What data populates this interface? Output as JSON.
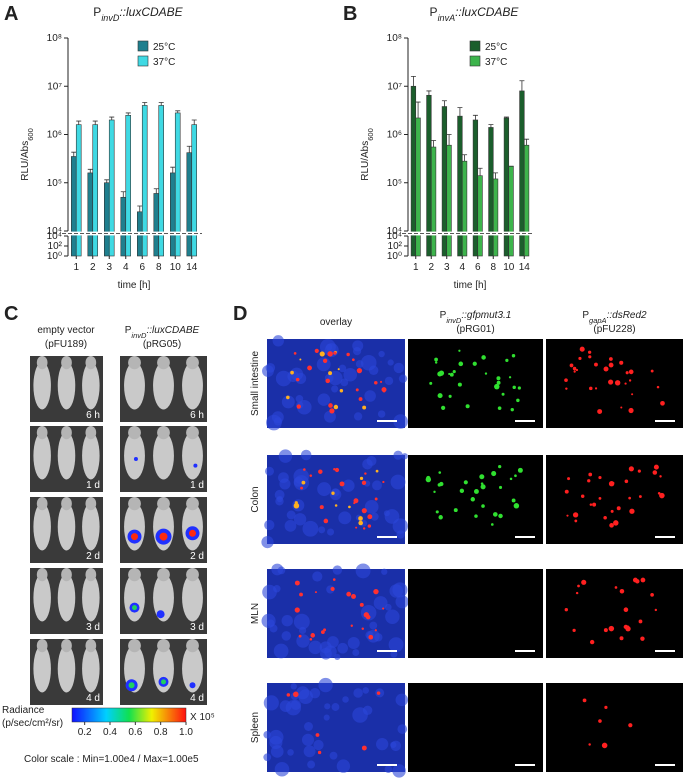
{
  "panel_labels": [
    "A",
    "B",
    "C",
    "D"
  ],
  "chart_data": [
    {
      "type": "bar",
      "title_prefix": "P",
      "title_subscript": "invD",
      "title_suffix": "::luxCDABE",
      "ylabel": "RLU/Abs",
      "ylabel_subscript": "600",
      "xlabel": "time [h]",
      "categories": [
        "1",
        "2",
        "3",
        "4",
        "6",
        "8",
        "10",
        "14"
      ],
      "series": [
        {
          "name": "25°C",
          "color": "#1f7f8e",
          "values": [
            350000,
            160000,
            100000,
            50000,
            25000,
            60000,
            160000,
            420000
          ],
          "errors": [
            80000,
            30000,
            15000,
            15000,
            8000,
            15000,
            50000,
            150000
          ]
        },
        {
          "name": "37°C",
          "color": "#3fd9e3",
          "values": [
            1600000,
            1600000,
            2000000,
            2500000,
            4000000,
            4000000,
            2800000,
            1600000
          ],
          "errors": [
            300000,
            300000,
            300000,
            300000,
            600000,
            600000,
            300000,
            400000
          ]
        }
      ],
      "log_scale": true,
      "ylim": [
        10000,
        100000000
      ],
      "yticks": [
        {
          "value": 10000,
          "label": "10⁴"
        },
        {
          "value": 100000,
          "label": "10⁵"
        },
        {
          "value": 1000000,
          "label": "10⁶"
        },
        {
          "value": 10000000,
          "label": "10⁷"
        },
        {
          "value": 100000000,
          "label": "10⁸"
        }
      ],
      "ylim_lower": [
        1,
        10000
      ],
      "yticks_lower": [
        {
          "value": 1,
          "label": "10⁰"
        },
        {
          "value": 100,
          "label": "10²"
        },
        {
          "value": 10000,
          "label": "10⁴"
        }
      ],
      "legend": "upper right"
    },
    {
      "type": "bar",
      "title_prefix": "P",
      "title_subscript": "invA",
      "title_suffix": "::luxCDABE",
      "ylabel": "RLU/Abs",
      "ylabel_subscript": "600",
      "xlabel": "time [h]",
      "categories": [
        "1",
        "2",
        "3",
        "4",
        "6",
        "8",
        "10",
        "14"
      ],
      "series": [
        {
          "name": "25°C",
          "color": "#1b5e2c",
          "values": [
            10000000,
            6500000,
            3800000,
            2400000,
            2000000,
            1400000,
            2200000,
            8000000
          ],
          "errors": [
            6000000,
            1500000,
            1200000,
            1200000,
            500000,
            200000,
            100000,
            5000000
          ]
        },
        {
          "name": "37°C",
          "color": "#3db44c",
          "values": [
            2200000,
            550000,
            600000,
            280000,
            140000,
            120000,
            220000,
            600000
          ],
          "errors": [
            2500000,
            200000,
            400000,
            100000,
            60000,
            40000,
            0,
            200000
          ]
        }
      ],
      "log_scale": true,
      "ylim": [
        10000,
        100000000
      ],
      "yticks": [
        {
          "value": 10000,
          "label": "10⁴"
        },
        {
          "value": 100000,
          "label": "10⁵"
        },
        {
          "value": 1000000,
          "label": "10⁶"
        },
        {
          "value": 10000000,
          "label": "10⁷"
        },
        {
          "value": 100000000,
          "label": "10⁸"
        }
      ],
      "ylim_lower": [
        1,
        10000
      ],
      "yticks_lower": [
        {
          "value": 1,
          "label": "10⁰"
        },
        {
          "value": 100,
          "label": "10²"
        },
        {
          "value": 10000,
          "label": "10⁴"
        }
      ],
      "legend": "upper right"
    }
  ],
  "panel_c": {
    "columns": [
      {
        "title": "empty vector",
        "plasmid": "(pFU189)"
      },
      {
        "title_prefix": "P",
        "title_subscript": "invD",
        "title_suffix": "::luxCDABE",
        "plasmid": "(pRG05)"
      }
    ],
    "timepoints": [
      "6 h",
      "1 d",
      "2 d",
      "3 d",
      "4 d"
    ],
    "colorbar": {
      "title": "Radiance",
      "unit": "(p/sec/cm²/sr)",
      "ticks": [
        0.2,
        0.4,
        0.6,
        0.8,
        {
          "value": 1,
          "label": "1.0"
        }
      ],
      "lim": [
        0.1,
        1
      ],
      "multiplier": "X 10⁵",
      "scale_note": "Color scale : Min=1.00e4 / Max=1.00e5"
    }
  },
  "panel_d": {
    "columns": [
      {
        "title": "overlay"
      },
      {
        "title_prefix": "P",
        "title_subscript": "invD",
        "title_suffix": "::gfpmut3.1",
        "plasmid": "(pRG01)"
      },
      {
        "title_prefix": "P",
        "title_subscript": "gapA",
        "title_suffix": "::dsRed2",
        "plasmid": "(pFU228)"
      }
    ],
    "rows": [
      "Small intestine",
      "Colon",
      "MLN",
      "Spleen"
    ]
  }
}
